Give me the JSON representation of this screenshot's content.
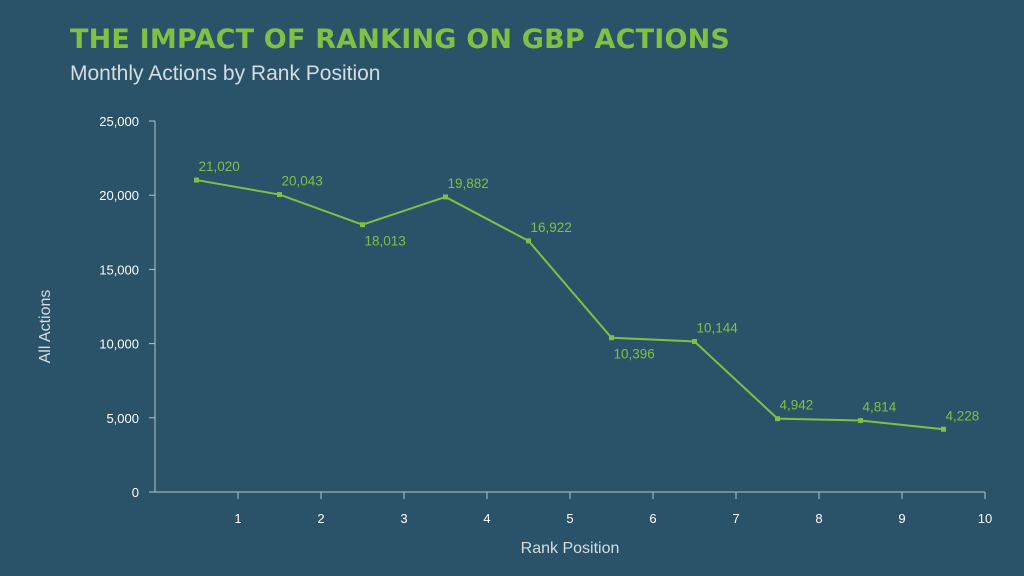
{
  "header": {
    "title": "THE IMPACT OF RANKING ON GBP ACTIONS",
    "subtitle": "Monthly Actions by Rank Position"
  },
  "colors": {
    "background": "#2a5369",
    "accent": "#7ec144",
    "axis": "#b7c5cd",
    "text": "#ffffff"
  },
  "chart_data": {
    "type": "line",
    "title": "THE IMPACT OF RANKING ON GBP ACTIONS",
    "subtitle": "Monthly Actions by Rank Position",
    "xlabel": "Rank Position",
    "ylabel": "All Actions",
    "x_ticks": [
      "1",
      "2",
      "3",
      "4",
      "5",
      "6",
      "7",
      "8",
      "9",
      "10"
    ],
    "y_ticks": [
      "0",
      "5,000",
      "10,000",
      "15,000",
      "20,000",
      "25,000"
    ],
    "y_tick_values": [
      0,
      5000,
      10000,
      15000,
      20000,
      25000
    ],
    "ylim": [
      0,
      25000
    ],
    "series": [
      {
        "values": [
          21020,
          20043,
          18013,
          19882,
          16922,
          10396,
          10144,
          4942,
          4814,
          4228
        ],
        "labels": [
          "21,020",
          "20,043",
          "18,013",
          "19,882",
          "16,922",
          "10,396",
          "10,144",
          "4,942",
          "4,814",
          "4,228"
        ],
        "label_position": [
          "above",
          "above",
          "below",
          "above",
          "above",
          "below",
          "above",
          "above",
          "above",
          "above"
        ]
      }
    ],
    "grid": false,
    "legend": "none"
  }
}
